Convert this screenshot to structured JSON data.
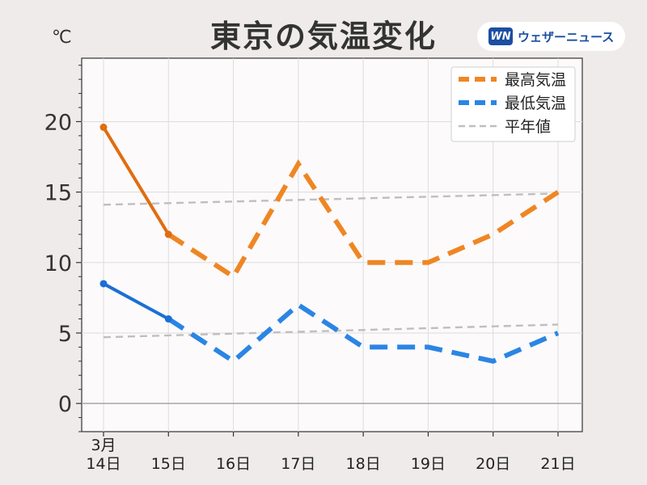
{
  "page": {
    "title": "東京の気温変化",
    "unit": "℃",
    "brand_logo": "WN",
    "brand_name": "ウェザーニュース",
    "brand_color": "#1c4ea1"
  },
  "chart_data": {
    "type": "line",
    "title": "東京の気温変化",
    "ylabel": "℃",
    "xlabel": "",
    "categories": [
      "3月\n14日",
      "15日",
      "16日",
      "17日",
      "18日",
      "19日",
      "20日",
      "21日"
    ],
    "ylim": [
      -2,
      24.5
    ],
    "yticks": [
      0,
      5,
      10,
      15,
      20
    ],
    "grid": true,
    "legend_position": "top-right",
    "observed_count": 2,
    "series": [
      {
        "name": "最高気温",
        "color": "#ef8623",
        "observed_color": "#e06d10",
        "values": [
          19.6,
          12,
          9,
          17,
          10,
          10,
          12,
          15
        ]
      },
      {
        "name": "最低気温",
        "color": "#2b85e4",
        "observed_color": "#1b6fd6",
        "values": [
          8.5,
          6,
          3,
          7,
          4,
          4,
          3,
          5
        ]
      },
      {
        "name": "平年値",
        "color": "#c0bebe",
        "values": [
          14.1,
          null,
          null,
          null,
          null,
          null,
          null,
          14.9
        ]
      },
      {
        "name": "",
        "color": "#c0bebe",
        "values": [
          4.7,
          null,
          null,
          null,
          null,
          null,
          null,
          5.6
        ]
      }
    ]
  }
}
